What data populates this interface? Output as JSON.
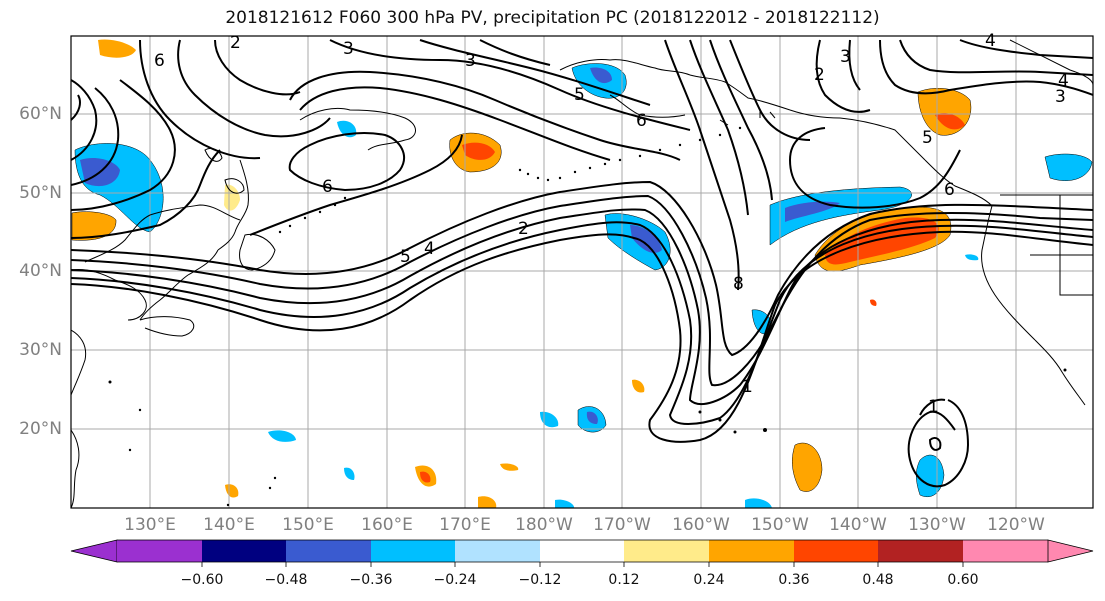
{
  "title": "2018121612 F060 300 hPa PV, precipitation PC (2018122012 - 2018122112)",
  "lat_labels": [
    "60°N",
    "50°N",
    "40°N",
    "30°N",
    "20°N"
  ],
  "lon_labels": [
    "130°E",
    "140°E",
    "150°E",
    "160°E",
    "170°E",
    "180°W",
    "170°W",
    "160°W",
    "150°W",
    "140°W",
    "130°W",
    "120°W"
  ],
  "contour_labels": [
    "1",
    "1",
    "2",
    "2",
    "2",
    "3",
    "3",
    "3",
    "3",
    "4",
    "4",
    "4",
    "5",
    "5",
    "5",
    "6",
    "6",
    "6",
    "6",
    "8"
  ],
  "colorbar": {
    "ticks": [
      "−0.60",
      "−0.48",
      "−0.36",
      "−0.24",
      "−0.12",
      "0.12",
      "0.24",
      "0.36",
      "0.48",
      "0.60"
    ],
    "colors": [
      "#9b30d0",
      "#000080",
      "#3a5bd0",
      "#00bfff",
      "#b0e2ff",
      "#ffffff",
      "#ffeb8a",
      "#ffa500",
      "#ff4500",
      "#b22222",
      "#ff88b0"
    ]
  }
}
